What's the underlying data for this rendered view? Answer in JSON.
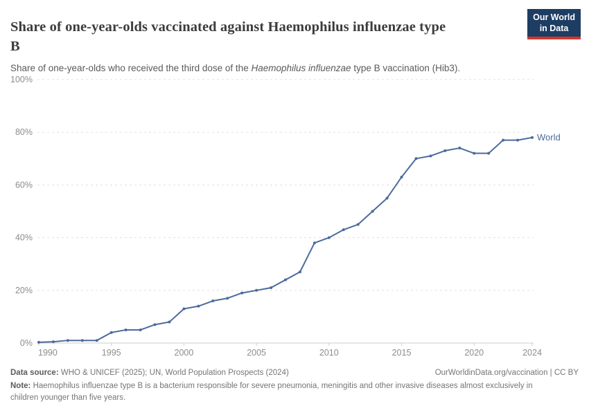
{
  "header": {
    "title_line1": "Share of one-year-olds vaccinated against Haemophilus influenzae type",
    "title_line2": "B",
    "subtitle_prefix": "Share of one-year-olds who received the third dose of the ",
    "subtitle_italic": "Haemophilus influenzae",
    "subtitle_suffix": " type B vaccination (Hib3).",
    "logo_line1": "Our World",
    "logo_line2": "in Data"
  },
  "chart_data": {
    "type": "line",
    "title": "Share of one-year-olds vaccinated against Haemophilus influenzae type B",
    "subtitle": "Share of one-year-olds who received the third dose of the Haemophilus influenzae type B vaccination (Hib3).",
    "xlabel": "",
    "ylabel": "",
    "ylim": [
      0,
      100
    ],
    "yticks": [
      0,
      20,
      40,
      60,
      80,
      100
    ],
    "ytick_suffix": "%",
    "xticks": [
      1990,
      1995,
      2000,
      2005,
      2010,
      2015,
      2020,
      2024
    ],
    "grid": "horizontal-dashed",
    "legend_position": "end-of-line",
    "series": [
      {
        "name": "World",
        "color": "#4c6a9c",
        "x": [
          1990,
          1991,
          1992,
          1993,
          1994,
          1995,
          1996,
          1997,
          1998,
          1999,
          2000,
          2001,
          2002,
          2003,
          2004,
          2005,
          2006,
          2007,
          2008,
          2009,
          2010,
          2011,
          2012,
          2013,
          2014,
          2015,
          2016,
          2017,
          2018,
          2019,
          2020,
          2021,
          2022,
          2023,
          2024
        ],
        "values": [
          0.3,
          0.5,
          1,
          1,
          1,
          4,
          5,
          5,
          7,
          8,
          13,
          14,
          16,
          17,
          19,
          20,
          21,
          24,
          27,
          38,
          40,
          43,
          45,
          50,
          55,
          63,
          70,
          71,
          73,
          74,
          72,
          72,
          77,
          77,
          78
        ]
      }
    ]
  },
  "colors": {
    "accent_line": "#4c6a9c",
    "grid": "#e0e0e0",
    "axis": "#cccccc",
    "axis_text": "#8c8c8c",
    "logo_bg": "#1d3d63",
    "logo_red": "#d8352a"
  },
  "footer": {
    "data_source_label": "Data source:",
    "data_source_text": " WHO & UNICEF (2025); UN, World Population Prospects (2024)",
    "link": "OurWorldinData.org/vaccination | CC BY",
    "note_label": "Note:",
    "note_text": " Haemophilus influenzae type B is a bacterium responsible for severe pneumonia, meningitis and other invasive diseases almost exclusively in children younger than five years."
  }
}
